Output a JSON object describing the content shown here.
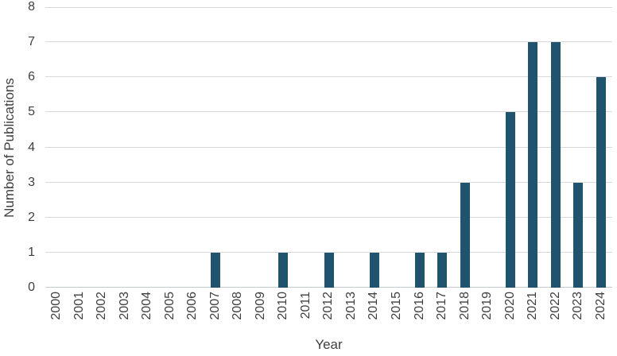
{
  "chart_data": {
    "type": "bar",
    "title": "",
    "xlabel": "Year",
    "ylabel": "Number of Publications",
    "categories": [
      "2000",
      "2001",
      "2002",
      "2003",
      "2004",
      "2005",
      "2006",
      "2007",
      "2008",
      "2009",
      "2010",
      "2011",
      "2012",
      "2013",
      "2014",
      "2015",
      "2016",
      "2017",
      "2018",
      "2019",
      "2020",
      "2021",
      "2022",
      "2023",
      "2024"
    ],
    "values": [
      0,
      0,
      0,
      0,
      0,
      0,
      0,
      1,
      0,
      0,
      1,
      0,
      1,
      0,
      1,
      0,
      1,
      1,
      3,
      0,
      5,
      7,
      7,
      3,
      6
    ],
    "ylim": [
      0,
      8
    ],
    "yticks": [
      0,
      1,
      2,
      3,
      4,
      5,
      6,
      7,
      8
    ],
    "grid": "horizontal",
    "legend": "none",
    "colors": {
      "bar": "#1f536e",
      "gridline": "#d9d9d9",
      "axis_line": "#c3c9d0",
      "text": "#3f3f3f"
    }
  }
}
